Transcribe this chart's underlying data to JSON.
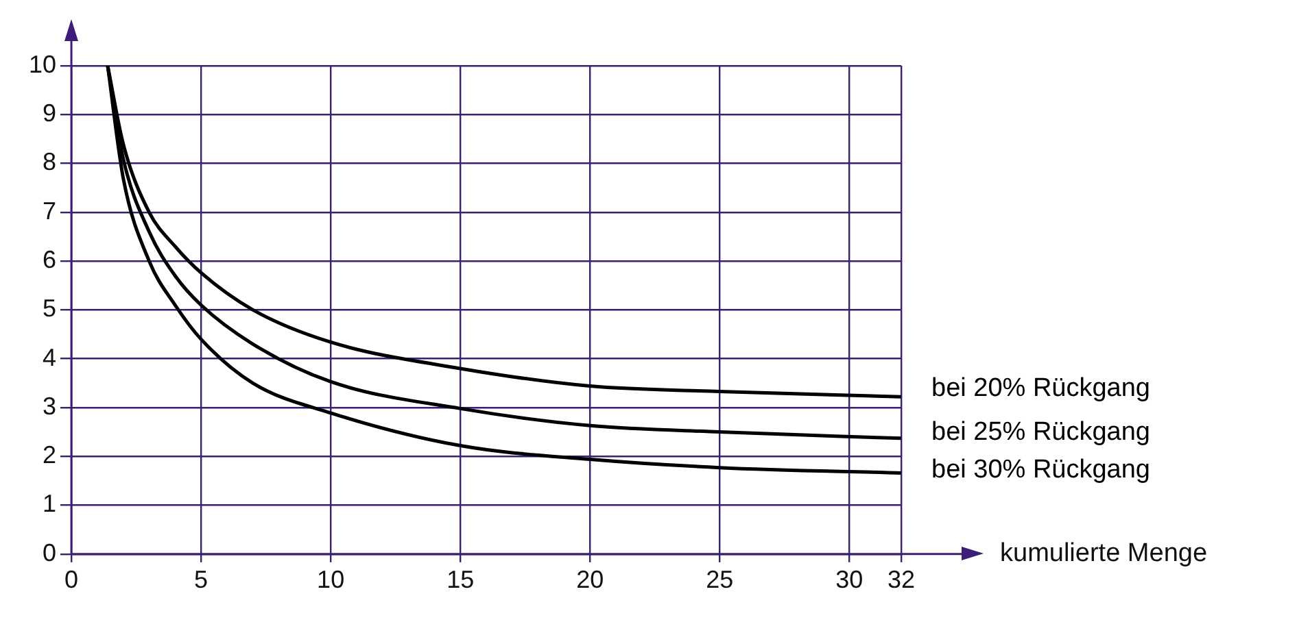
{
  "chart_data": {
    "type": "line",
    "xlabel": "kumulierte Menge",
    "xlim": [
      0,
      32
    ],
    "xticks": [
      0,
      5,
      10,
      15,
      20,
      25,
      30,
      32
    ],
    "ylim": [
      0,
      10
    ],
    "yticks": [
      0,
      1,
      2,
      3,
      4,
      5,
      6,
      7,
      8,
      9,
      10
    ],
    "grid": true,
    "legend": false,
    "marker": "none",
    "line_style": "solid",
    "x": [
      1.4,
      2,
      3,
      4,
      5,
      7,
      10,
      15,
      20,
      25,
      32
    ],
    "series": [
      {
        "name": "bei 20% Rückgang",
        "color": "#000000",
        "values": [
          10,
          8.4,
          7.0,
          6.3,
          5.76,
          5.0,
          4.34,
          3.8,
          3.44,
          3.33,
          3.22
        ]
      },
      {
        "name": "bei 25% Rückgang",
        "color": "#000000",
        "values": [
          10,
          8.1,
          6.6,
          5.7,
          5.1,
          4.3,
          3.53,
          2.98,
          2.63,
          2.5,
          2.37
        ]
      },
      {
        "name": "bei 30% Rückgang",
        "color": "#000000",
        "values": [
          10,
          7.7,
          6.0,
          5.1,
          4.4,
          3.5,
          2.89,
          2.22,
          1.94,
          1.77,
          1.66
        ]
      }
    ]
  }
}
